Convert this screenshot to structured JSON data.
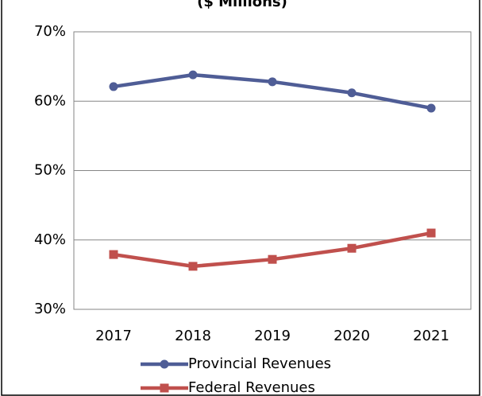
{
  "chart_data": {
    "type": "line",
    "title": "($ Millions)",
    "categories": [
      "2017",
      "2018",
      "2019",
      "2020",
      "2021"
    ],
    "series": [
      {
        "name": "Provincial Revenues",
        "color": "#4f5d96",
        "marker": "circle",
        "values": [
          62.1,
          63.8,
          62.8,
          61.2,
          59.0
        ]
      },
      {
        "name": "Federal Revenues",
        "color": "#c0504d",
        "marker": "square",
        "values": [
          37.9,
          36.2,
          37.2,
          38.8,
          41.0
        ]
      }
    ],
    "ylim": [
      30,
      70
    ],
    "yticks": [
      {
        "value": 30,
        "label": "30%"
      },
      {
        "value": 40,
        "label": "40%"
      },
      {
        "value": 50,
        "label": "50%"
      },
      {
        "value": 60,
        "label": "60%"
      },
      {
        "value": 70,
        "label": "70%"
      }
    ],
    "grid": true,
    "legend": "bottom"
  }
}
